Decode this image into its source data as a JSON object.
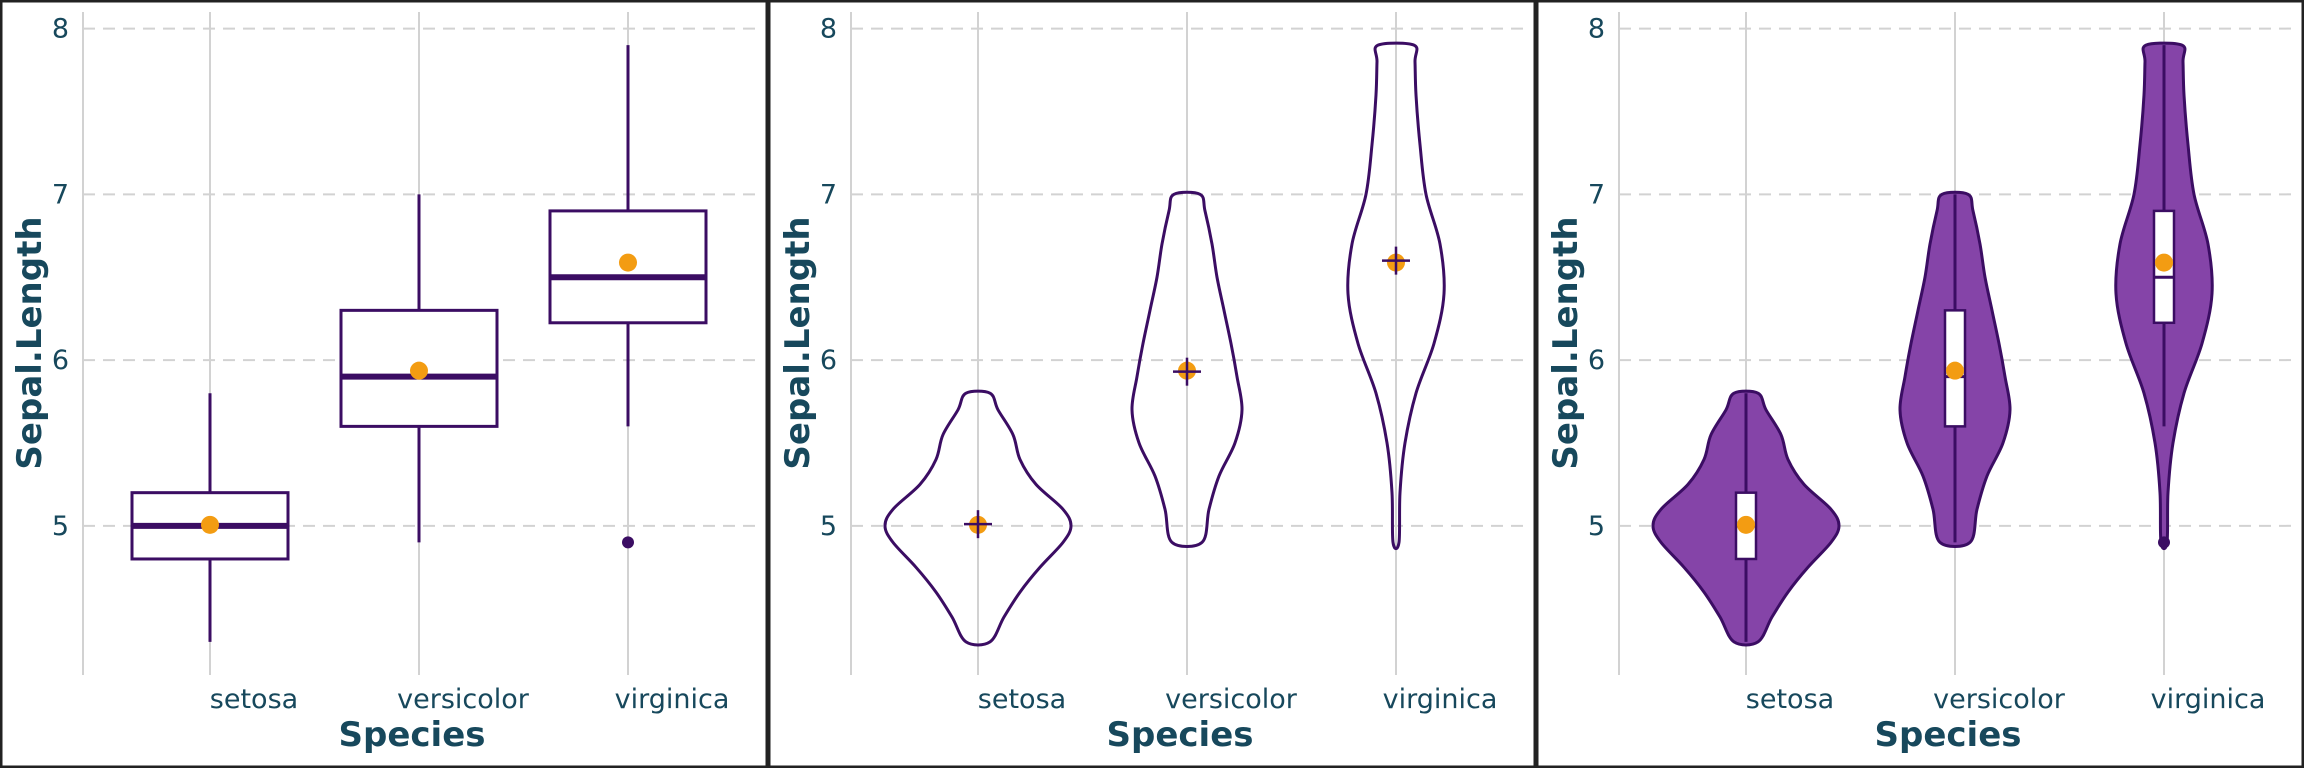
{
  "colors": {
    "outline": "#3b0d63",
    "mean": "#f39c12",
    "violin_fill": "#8544a8",
    "grid": "#d2d2d2",
    "axis_text": "#17485c",
    "panel_border": "#222222"
  },
  "chart_data": [
    {
      "type": "box",
      "xlabel": "Species",
      "ylabel": "Sepal.Length",
      "categories": [
        "setosa",
        "versicolor",
        "virginica"
      ],
      "yticks": [
        5,
        6,
        7,
        8
      ],
      "ylim": [
        4.1,
        8.1
      ],
      "grid": "horizontal dashed at y ticks, vertical at categories",
      "boxes": [
        {
          "category": "setosa",
          "min": 4.3,
          "q1": 4.8,
          "median": 5.0,
          "q3": 5.2,
          "max": 5.8,
          "mean": 5.006,
          "outliers": []
        },
        {
          "category": "versicolor",
          "min": 4.9,
          "q1": 5.6,
          "median": 5.9,
          "q3": 6.3,
          "max": 7.0,
          "mean": 5.936,
          "outliers": []
        },
        {
          "category": "virginica",
          "min": 5.6,
          "q1": 6.225,
          "median": 6.5,
          "q3": 6.9,
          "max": 7.9,
          "mean": 6.588,
          "outliers": [
            4.9
          ]
        }
      ]
    },
    {
      "type": "violin",
      "xlabel": "Species",
      "ylabel": "Sepal.Length",
      "categories": [
        "setosa",
        "versicolor",
        "virginica"
      ],
      "yticks": [
        5,
        6,
        7,
        8
      ],
      "ylim": [
        4.1,
        8.1
      ],
      "fill": "none",
      "markers": "orange mean dot and purple crosshair per category",
      "violins": [
        {
          "category": "setosa",
          "min": 4.3,
          "max": 5.8,
          "mean": 5.006,
          "cross": 5.01,
          "density": [
            [
              4.3,
              0.12
            ],
            [
              4.45,
              0.26
            ],
            [
              4.6,
              0.42
            ],
            [
              4.75,
              0.62
            ],
            [
              4.9,
              0.85
            ],
            [
              5.0,
              0.93
            ],
            [
              5.1,
              0.85
            ],
            [
              5.25,
              0.58
            ],
            [
              5.4,
              0.42
            ],
            [
              5.55,
              0.35
            ],
            [
              5.7,
              0.2
            ],
            [
              5.8,
              0.12
            ]
          ]
        },
        {
          "category": "versicolor",
          "min": 4.9,
          "max": 7.0,
          "mean": 5.936,
          "cross": 5.93,
          "density": [
            [
              4.9,
              0.15
            ],
            [
              5.1,
              0.22
            ],
            [
              5.3,
              0.32
            ],
            [
              5.5,
              0.48
            ],
            [
              5.7,
              0.55
            ],
            [
              5.9,
              0.5
            ],
            [
              6.1,
              0.44
            ],
            [
              6.3,
              0.37
            ],
            [
              6.5,
              0.3
            ],
            [
              6.7,
              0.25
            ],
            [
              6.9,
              0.18
            ],
            [
              7.0,
              0.13
            ]
          ]
        },
        {
          "category": "virginica",
          "min": 4.9,
          "max": 7.9,
          "mean": 6.588,
          "cross": 6.6,
          "density": [
            [
              4.9,
              0.03
            ],
            [
              5.2,
              0.04
            ],
            [
              5.5,
              0.09
            ],
            [
              5.8,
              0.2
            ],
            [
              6.1,
              0.38
            ],
            [
              6.4,
              0.48
            ],
            [
              6.7,
              0.44
            ],
            [
              7.0,
              0.3
            ],
            [
              7.3,
              0.24
            ],
            [
              7.6,
              0.2
            ],
            [
              7.8,
              0.19
            ],
            [
              7.9,
              0.18
            ]
          ]
        }
      ]
    },
    {
      "type": "violin-box",
      "xlabel": "Species",
      "ylabel": "Sepal.Length",
      "categories": [
        "setosa",
        "versicolor",
        "virginica"
      ],
      "yticks": [
        5,
        6,
        7,
        8
      ],
      "ylim": [
        4.1,
        8.1
      ],
      "fill": "purple violins with white inner boxes and orange mean dots",
      "items": [
        {
          "category": "setosa",
          "min": 4.3,
          "q1": 4.8,
          "median": 5.0,
          "q3": 5.2,
          "max": 5.8,
          "mean": 5.006,
          "outliers": [],
          "density": [
            [
              4.3,
              0.12
            ],
            [
              4.45,
              0.26
            ],
            [
              4.6,
              0.42
            ],
            [
              4.75,
              0.62
            ],
            [
              4.9,
              0.85
            ],
            [
              5.0,
              0.93
            ],
            [
              5.1,
              0.85
            ],
            [
              5.25,
              0.58
            ],
            [
              5.4,
              0.42
            ],
            [
              5.55,
              0.35
            ],
            [
              5.7,
              0.2
            ],
            [
              5.8,
              0.12
            ]
          ]
        },
        {
          "category": "versicolor",
          "min": 4.9,
          "q1": 5.6,
          "median": 5.9,
          "q3": 6.3,
          "max": 7.0,
          "mean": 5.936,
          "outliers": [],
          "density": [
            [
              4.9,
              0.15
            ],
            [
              5.1,
              0.22
            ],
            [
              5.3,
              0.32
            ],
            [
              5.5,
              0.48
            ],
            [
              5.7,
              0.55
            ],
            [
              5.9,
              0.5
            ],
            [
              6.1,
              0.44
            ],
            [
              6.3,
              0.37
            ],
            [
              6.5,
              0.3
            ],
            [
              6.7,
              0.25
            ],
            [
              6.9,
              0.18
            ],
            [
              7.0,
              0.13
            ]
          ]
        },
        {
          "category": "virginica",
          "min": 5.6,
          "q1": 6.225,
          "median": 6.5,
          "q3": 6.9,
          "max": 7.9,
          "mean": 6.588,
          "outliers": [
            4.9
          ],
          "density": [
            [
              4.9,
              0.03
            ],
            [
              5.2,
              0.04
            ],
            [
              5.5,
              0.09
            ],
            [
              5.8,
              0.2
            ],
            [
              6.1,
              0.38
            ],
            [
              6.4,
              0.48
            ],
            [
              6.7,
              0.44
            ],
            [
              7.0,
              0.3
            ],
            [
              7.3,
              0.24
            ],
            [
              7.6,
              0.2
            ],
            [
              7.8,
              0.19
            ],
            [
              7.9,
              0.18
            ]
          ]
        }
      ]
    }
  ]
}
